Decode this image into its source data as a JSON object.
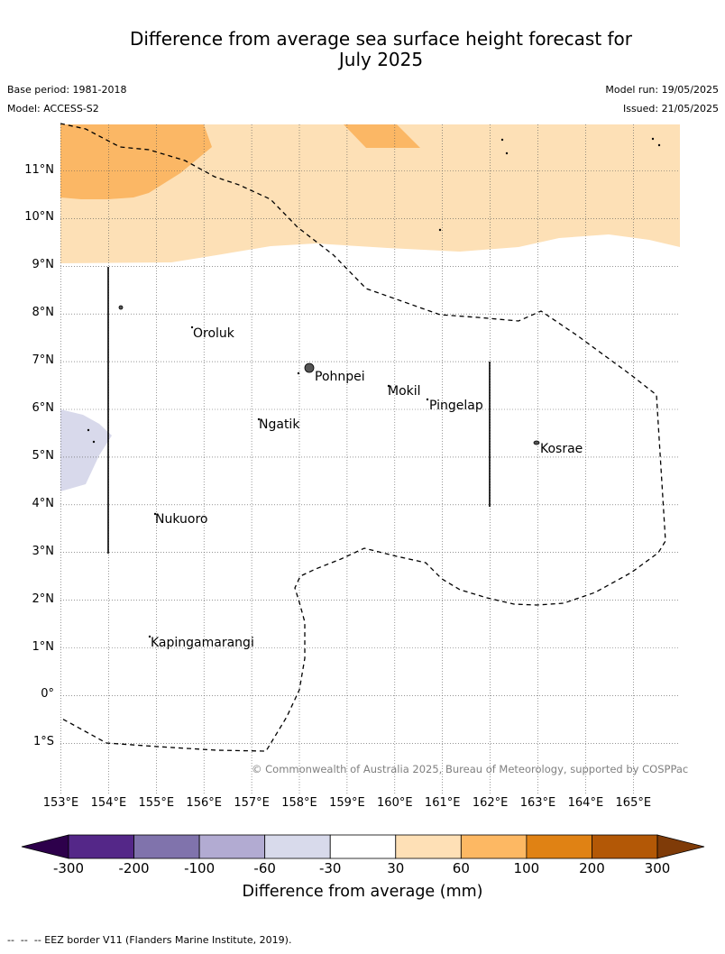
{
  "header": {
    "title_line1": "Difference from average sea surface height forecast for",
    "title_line2": "July 2025",
    "base_period": "Base period: 1981-2018",
    "model": "Model: ACCESS-S2",
    "model_run": "Model run: 19/05/2025",
    "issued": "Issued: 21/05/2025"
  },
  "map": {
    "lat_labels": [
      "11°N",
      "10°N",
      "9°N",
      "8°N",
      "7°N",
      "6°N",
      "5°N",
      "4°N",
      "3°N",
      "2°N",
      "1°N",
      "0°",
      "1°S"
    ],
    "lon_labels": [
      "153°E",
      "154°E",
      "155°E",
      "156°E",
      "157°E",
      "158°E",
      "159°E",
      "160°E",
      "161°E",
      "162°E",
      "163°E",
      "164°E",
      "165°E"
    ],
    "places": [
      "Oroluk",
      "Pohnpei",
      "Mokil",
      "Pingelap",
      "Ngatik",
      "Kosrae",
      "Nukuoro",
      "Kapingamarangi"
    ],
    "copyright": "© Commonwealth of Australia 2025, Bureau of Meteorology, supported by COSPPac",
    "shading_colors": {
      "30_to_60": "#fde0b6",
      "60_to_100": "#fbb765",
      "minus60_to_minus30": "#d8d9eb"
    },
    "border_line_color": "#000000"
  },
  "colorbar": {
    "title": "Difference from average (mm)",
    "ticks": [
      "-300",
      "-200",
      "-100",
      "-60",
      "-30",
      "30",
      "60",
      "100",
      "200",
      "300"
    ],
    "colors": [
      "#2d004b",
      "#542788",
      "#8073ac",
      "#b2abd2",
      "#d8daeb",
      "#ffffff",
      "#fee0b6",
      "#fdb863",
      "#e08214",
      "#b35806",
      "#7f3b08"
    ]
  },
  "footer": {
    "legend_text": "--  --  -- EEZ border V11 (Flanders Marine Institute, 2019)."
  }
}
